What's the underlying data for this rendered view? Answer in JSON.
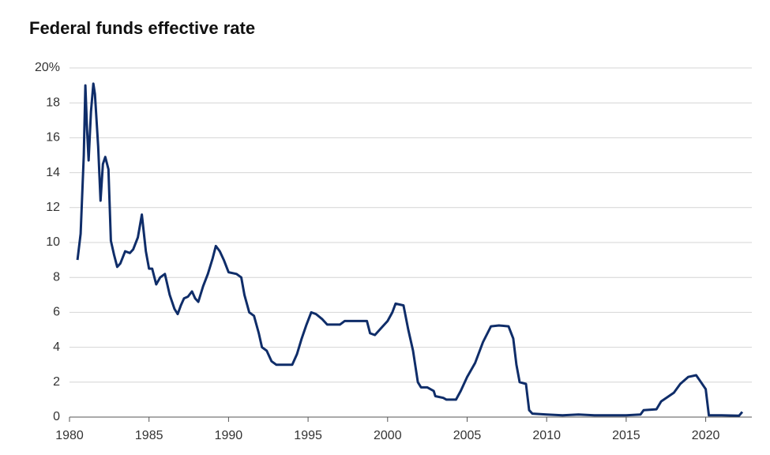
{
  "chart_data": {
    "type": "line",
    "title": "Federal funds effective rate",
    "x": [
      1980.5,
      1980.7,
      1980.9,
      1981.0,
      1981.1,
      1981.2,
      1981.35,
      1981.5,
      1981.6,
      1981.8,
      1981.95,
      1982.1,
      1982.25,
      1982.45,
      1982.6,
      1982.8,
      1983.0,
      1983.2,
      1983.5,
      1983.8,
      1984.0,
      1984.3,
      1984.55,
      1984.8,
      1985.0,
      1985.2,
      1985.45,
      1985.7,
      1986.0,
      1986.3,
      1986.6,
      1986.8,
      1987.0,
      1987.2,
      1987.45,
      1987.7,
      1987.9,
      1988.1,
      1988.4,
      1988.7,
      1989.0,
      1989.2,
      1989.45,
      1989.7,
      1990.0,
      1990.5,
      1990.8,
      1991.0,
      1991.3,
      1991.6,
      1991.9,
      1992.1,
      1992.4,
      1992.7,
      1993.0,
      1993.5,
      1994.0,
      1994.3,
      1994.6,
      1994.9,
      1995.2,
      1995.5,
      1995.9,
      1996.2,
      1996.6,
      1997.0,
      1997.3,
      1997.8,
      1998.3,
      1998.7,
      1998.9,
      1999.2,
      1999.6,
      2000.0,
      2000.3,
      2000.5,
      2001.0,
      2001.3,
      2001.6,
      2001.9,
      2002.1,
      2002.5,
      2002.9,
      2003.0,
      2003.5,
      2003.7,
      2004.3,
      2004.6,
      2005.0,
      2005.5,
      2006.0,
      2006.5,
      2007.0,
      2007.6,
      2007.9,
      2008.1,
      2008.3,
      2008.7,
      2008.9,
      2009.1,
      2010.0,
      2011.0,
      2012.0,
      2013.0,
      2014.0,
      2015.0,
      2015.9,
      2016.1,
      2016.9,
      2017.2,
      2017.6,
      2018.0,
      2018.4,
      2018.9,
      2019.4,
      2019.7,
      2020.0,
      2020.2,
      2021.0,
      2022.1,
      2022.3
    ],
    "values": [
      9.0,
      10.5,
      15.0,
      19.0,
      16.5,
      14.7,
      17.5,
      19.1,
      18.5,
      15.5,
      12.4,
      14.5,
      14.9,
      14.2,
      10.1,
      9.3,
      8.6,
      8.8,
      9.5,
      9.4,
      9.6,
      10.3,
      11.6,
      9.5,
      8.5,
      8.5,
      7.6,
      8.0,
      8.2,
      7.0,
      6.2,
      5.9,
      6.4,
      6.8,
      6.9,
      7.2,
      6.8,
      6.6,
      7.5,
      8.2,
      9.1,
      9.8,
      9.5,
      9.0,
      8.3,
      8.2,
      8.0,
      7.0,
      6.0,
      5.8,
      4.8,
      4.0,
      3.8,
      3.2,
      3.0,
      3.0,
      3.0,
      3.6,
      4.5,
      5.3,
      6.0,
      5.9,
      5.6,
      5.3,
      5.3,
      5.3,
      5.5,
      5.5,
      5.5,
      5.5,
      4.8,
      4.7,
      5.1,
      5.5,
      6.0,
      6.5,
      6.4,
      5.0,
      3.8,
      2.0,
      1.7,
      1.7,
      1.5,
      1.2,
      1.1,
      1.0,
      1.0,
      1.5,
      2.3,
      3.1,
      4.3,
      5.2,
      5.25,
      5.2,
      4.5,
      3.0,
      2.0,
      1.9,
      0.4,
      0.2,
      0.15,
      0.1,
      0.15,
      0.1,
      0.1,
      0.1,
      0.15,
      0.4,
      0.45,
      0.9,
      1.15,
      1.4,
      1.9,
      2.3,
      2.4,
      2.0,
      1.6,
      0.1,
      0.1,
      0.08,
      0.3
    ],
    "color": "#0f2d69",
    "xlim": [
      1980,
      2022.9
    ],
    "xticks": [
      1980,
      1985,
      1990,
      1995,
      2000,
      2005,
      2010,
      2015,
      2020
    ],
    "ylim": [
      0,
      20
    ],
    "yticks": [
      0,
      2,
      4,
      6,
      8,
      10,
      12,
      14,
      16,
      18,
      {
        "value": 20,
        "label": "20%"
      }
    ],
    "grid": true
  }
}
